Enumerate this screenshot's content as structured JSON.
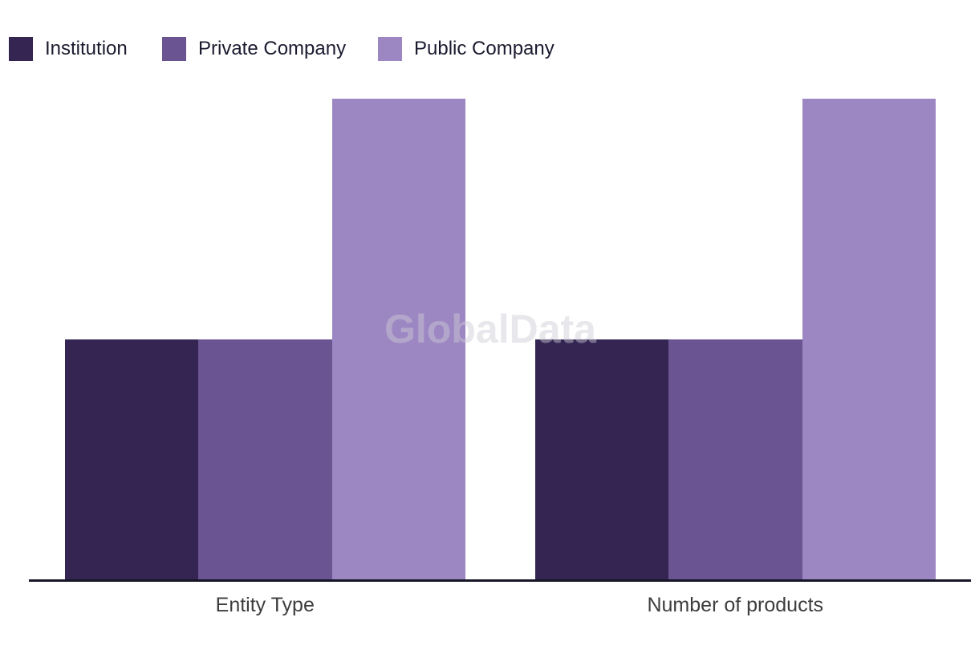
{
  "watermark_text": "GlobalData",
  "chart_data": {
    "type": "bar",
    "title": "",
    "categories": [
      "Entity Type",
      "Number of products"
    ],
    "series": [
      {
        "name": "Institution",
        "color": "#342553",
        "values": [
          1,
          1
        ]
      },
      {
        "name": "Private Company",
        "color": "#6A5491",
        "values": [
          1,
          1
        ]
      },
      {
        "name": "Public Company",
        "color": "#9D87C3",
        "values": [
          2,
          2
        ]
      }
    ],
    "ylim": [
      0,
      2
    ],
    "xlabel": "",
    "ylabel": "",
    "grid": false,
    "y_axis_visible": false,
    "legend_position": "top-left",
    "axis_line_color": "#161627",
    "legend_text_color": "#1b1b30",
    "category_label_color": "#3d3d3d",
    "background_color": "#FFFFFF",
    "watermark": "GlobalData"
  }
}
